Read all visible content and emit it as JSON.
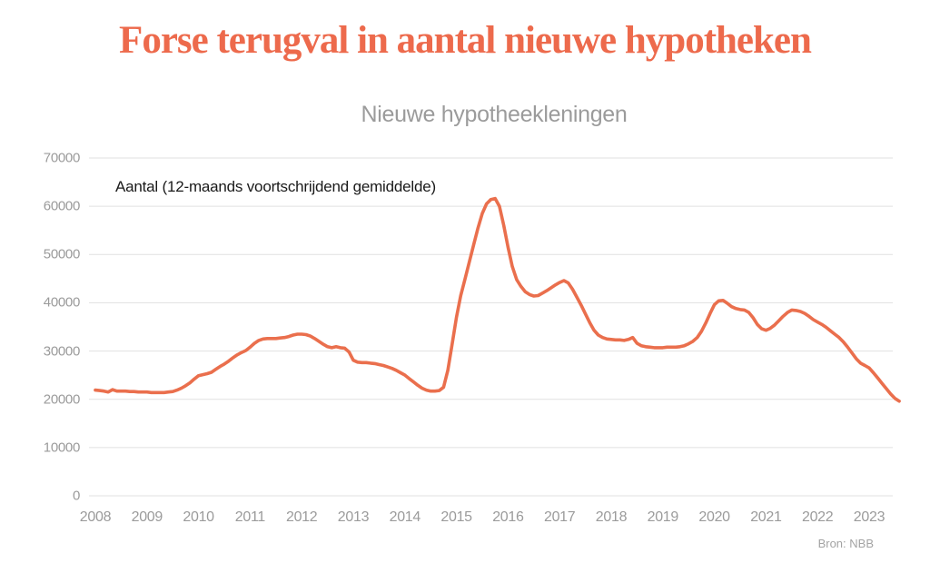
{
  "header": {
    "title": "Forse terugval in aantal nieuwe hypotheken"
  },
  "chart": {
    "subtitle": "Nieuwe hypotheekleningen",
    "annotation": "Aantal (12-maands voortschrijdend gemiddelde)",
    "source": "Bron: NBB"
  },
  "colors": {
    "title": "#ed6a4c",
    "line": "#ea6f4d",
    "grid": "#e1e1e1",
    "tick": "#9b9b9b"
  },
  "chart_data": {
    "type": "line",
    "title": "Nieuwe hypotheekleningen",
    "xlabel": "",
    "ylabel": "Aantal (12-maands voortschrijdend gemiddelde)",
    "grid": "horizontal",
    "legend_position": "top-left-inside",
    "source": "Bron: NBB",
    "ylim": [
      0,
      70000
    ],
    "yticks": [
      0,
      10000,
      20000,
      30000,
      40000,
      50000,
      60000,
      70000
    ],
    "xticks": [
      2008,
      2009,
      2010,
      2011,
      2012,
      2013,
      2014,
      2015,
      2016,
      2017,
      2018,
      2019,
      2020,
      2021,
      2022,
      2023
    ],
    "x_start_year": 2008,
    "points_per_year": 12,
    "x_end": "2023-08",
    "series": [
      {
        "name": "Aantal nieuwe hypotheekleningen (12-maands voortschrijdend gemiddelde)",
        "values": [
          21900,
          21800,
          21700,
          21500,
          22000,
          21700,
          21700,
          21700,
          21600,
          21600,
          21500,
          21500,
          21500,
          21400,
          21400,
          21400,
          21400,
          21500,
          21600,
          21900,
          22300,
          22800,
          23400,
          24200,
          24900,
          25100,
          25300,
          25600,
          26200,
          26800,
          27300,
          27900,
          28600,
          29200,
          29700,
          30100,
          30800,
          31600,
          32200,
          32500,
          32600,
          32600,
          32600,
          32700,
          32800,
          33000,
          33300,
          33500,
          33500,
          33400,
          33100,
          32600,
          32000,
          31400,
          30900,
          30700,
          30900,
          30700,
          30600,
          29800,
          28100,
          27700,
          27600,
          27600,
          27500,
          27400,
          27200,
          27000,
          26700,
          26400,
          26000,
          25500,
          25000,
          24300,
          23600,
          22900,
          22300,
          21900,
          21700,
          21700,
          21800,
          22500,
          26000,
          31500,
          37000,
          41500,
          45000,
          48500,
          52000,
          55500,
          58500,
          60500,
          61400,
          61600,
          60000,
          56000,
          51500,
          47500,
          44800,
          43400,
          42300,
          41700,
          41400,
          41500,
          42000,
          42500,
          43100,
          43700,
          44200,
          44600,
          44100,
          42800,
          41200,
          39500,
          37700,
          35900,
          34300,
          33300,
          32800,
          32500,
          32400,
          32300,
          32300,
          32200,
          32400,
          32800,
          31600,
          31100,
          30900,
          30800,
          30700,
          30700,
          30700,
          30800,
          30800,
          30800,
          30900,
          31100,
          31500,
          32000,
          32800,
          34100,
          35800,
          37800,
          39600,
          40400,
          40500,
          39900,
          39200,
          38800,
          38600,
          38500,
          38000,
          36900,
          35500,
          34600,
          34300,
          34700,
          35400,
          36300,
          37200,
          38000,
          38500,
          38400,
          38200,
          37800,
          37200,
          36500,
          36000,
          35500,
          34900,
          34200,
          33500,
          32800,
          31900,
          30800,
          29600,
          28400,
          27500,
          27000,
          26500,
          25500,
          24400,
          23300,
          22200,
          21100,
          20200,
          19600
        ]
      }
    ]
  }
}
